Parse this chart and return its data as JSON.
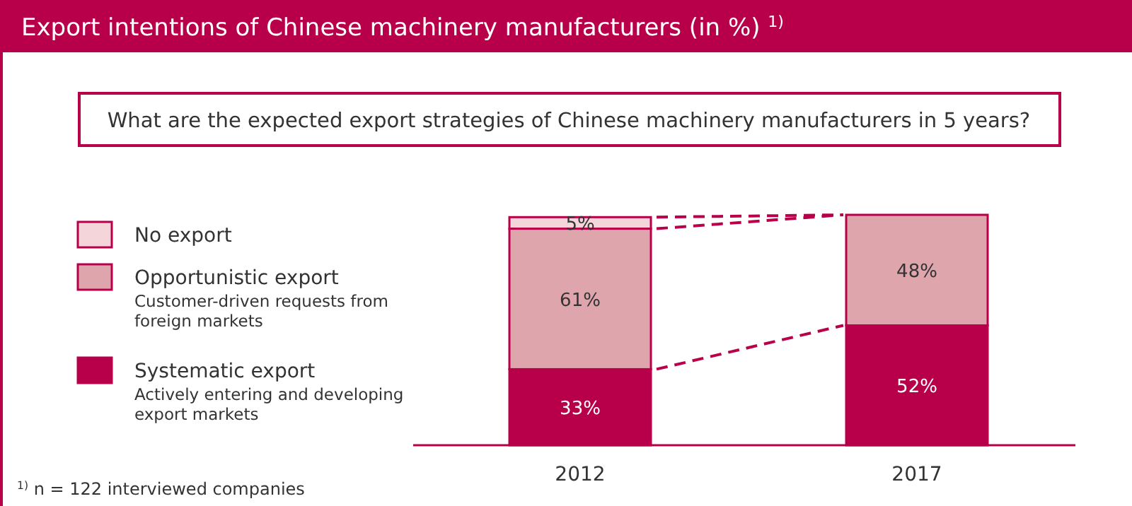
{
  "chart_data": {
    "type": "bar",
    "title": "Export intentions of Chinese machinery manufacturers (in %) $^{1)}$",
    "subtitle": "What are the expected export strategies of Chinese machinery manufacturers in 5 years?",
    "categories": [
      "2012",
      "2017"
    ],
    "stacked": true,
    "legend": "left",
    "series": [
      {
        "name": "Systematic export",
        "color": "#b8004a",
        "values": [
          33,
          52
        ],
        "value_labels": [
          "33%",
          "52%"
        ]
      },
      {
        "name": "Opportunistic export",
        "color": "#dea5ad",
        "values": [
          61,
          48
        ],
        "value_labels": [
          "61%",
          "48%"
        ]
      },
      {
        "name": "No export",
        "color": "#f3d5da",
        "values": [
          5,
          0
        ],
        "value_labels": [
          "5%",
          null
        ]
      }
    ],
    "annotations": [
      "Actively entering and developing export markets",
      "Customer-driven requests from foreign markets",
      "$^{1)}$ n = 122 interviewed companies"
    ]
  }
}
